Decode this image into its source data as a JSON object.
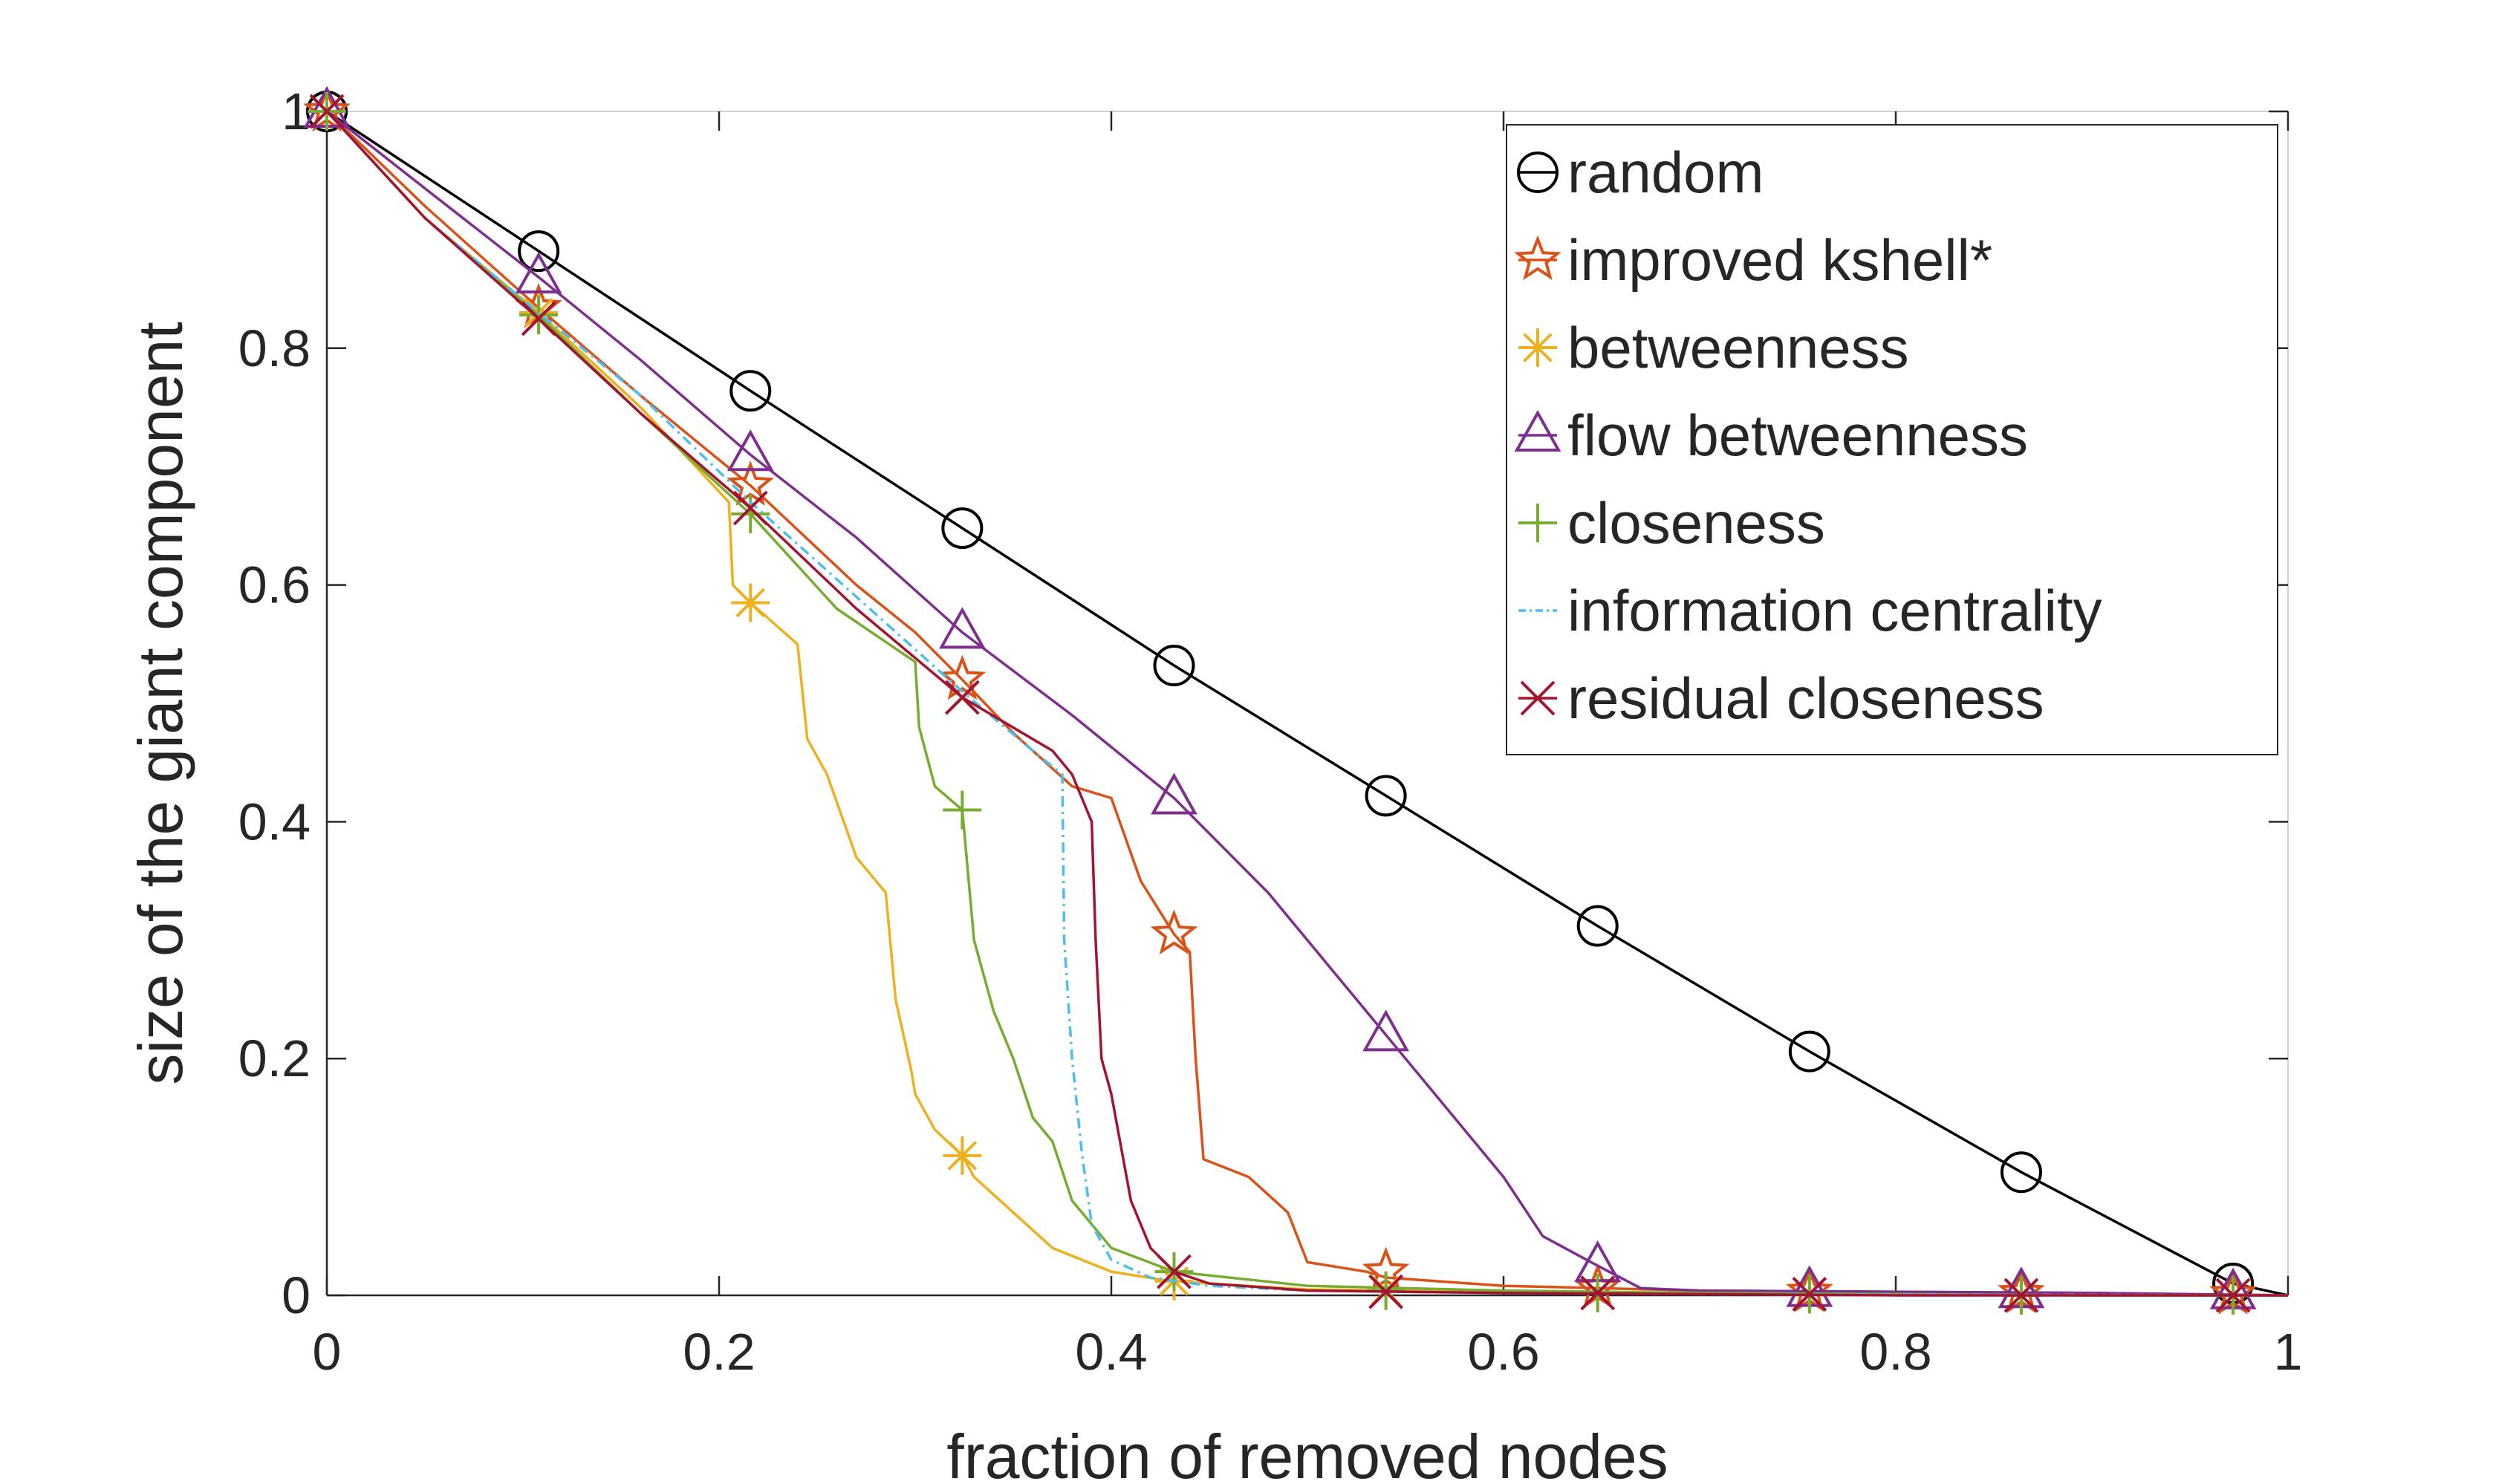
{
  "chart_data": {
    "type": "line",
    "xlabel": "fraction of removed nodes",
    "ylabel": "size of the giant component",
    "xlim": [
      0,
      1
    ],
    "ylim": [
      0,
      1
    ],
    "xticks": [
      "0",
      "0.2",
      "0.4",
      "0.6",
      "0.8",
      "1"
    ],
    "yticks": [
      "0",
      "0.2",
      "0.4",
      "0.6",
      "0.8",
      "1"
    ],
    "grid": false,
    "legend_position": "top-right",
    "series": [
      {
        "name": "random",
        "color": "#000000",
        "marker": "circle",
        "dash": "solid",
        "x": [
          0,
          0.108,
          0.216,
          0.324,
          0.432,
          0.54,
          0.648,
          0.756,
          0.864,
          0.972,
          1.0
        ],
        "y": [
          1.0,
          0.882,
          0.764,
          0.648,
          0.532,
          0.422,
          0.312,
          0.206,
          0.104,
          0.01,
          0.0
        ],
        "marker_x": [
          0,
          0.108,
          0.216,
          0.324,
          0.432,
          0.54,
          0.648,
          0.756,
          0.864,
          0.972
        ],
        "marker_y": [
          1.0,
          0.882,
          0.764,
          0.648,
          0.532,
          0.422,
          0.312,
          0.206,
          0.104,
          0.01
        ]
      },
      {
        "name": "improved kshell*",
        "color": "#D95319",
        "marker": "star",
        "dash": "solid",
        "x": [
          0,
          0.05,
          0.108,
          0.16,
          0.216,
          0.27,
          0.3,
          0.324,
          0.35,
          0.38,
          0.4,
          0.415,
          0.432,
          0.44,
          0.443,
          0.447,
          0.47,
          0.49,
          0.5,
          0.53,
          0.54,
          0.6,
          0.65,
          0.7,
          0.8,
          0.9,
          1.0
        ],
        "y": [
          1.0,
          0.92,
          0.834,
          0.76,
          0.684,
          0.6,
          0.56,
          0.52,
          0.475,
          0.43,
          0.42,
          0.35,
          0.305,
          0.29,
          0.2,
          0.115,
          0.1,
          0.07,
          0.028,
          0.02,
          0.015,
          0.008,
          0.006,
          0.004,
          0.003,
          0.002,
          0.0
        ],
        "marker_x": [
          0,
          0.108,
          0.216,
          0.324,
          0.432,
          0.54,
          0.648,
          0.756,
          0.864,
          0.972
        ],
        "marker_y": [
          1.0,
          0.834,
          0.684,
          0.52,
          0.305,
          0.02,
          0.006,
          0.003,
          0.002,
          0.001
        ]
      },
      {
        "name": "betweenness",
        "color": "#EDB120",
        "marker": "asterisk",
        "dash": "solid",
        "x": [
          0,
          0.05,
          0.108,
          0.16,
          0.205,
          0.207,
          0.216,
          0.24,
          0.245,
          0.255,
          0.27,
          0.285,
          0.29,
          0.298,
          0.3,
          0.31,
          0.324,
          0.33,
          0.35,
          0.37,
          0.4,
          0.43,
          0.5,
          0.6,
          0.7,
          0.8,
          0.9,
          1.0
        ],
        "y": [
          1.0,
          0.91,
          0.83,
          0.75,
          0.67,
          0.6,
          0.585,
          0.55,
          0.47,
          0.44,
          0.37,
          0.34,
          0.25,
          0.19,
          0.17,
          0.14,
          0.118,
          0.1,
          0.07,
          0.04,
          0.02,
          0.012,
          0.005,
          0.003,
          0.002,
          0.001,
          0.0,
          0.0
        ],
        "marker_x": [
          0,
          0.108,
          0.216,
          0.324,
          0.432,
          0.54,
          0.648,
          0.756,
          0.864,
          0.972
        ],
        "marker_y": [
          1.0,
          0.83,
          0.585,
          0.118,
          0.012,
          0.004,
          0.002,
          0.001,
          0.0,
          0.0
        ]
      },
      {
        "name": "flow betweenness",
        "color": "#7E2F8E",
        "marker": "triangle",
        "dash": "solid",
        "x": [
          0,
          0.05,
          0.108,
          0.16,
          0.216,
          0.27,
          0.324,
          0.38,
          0.432,
          0.48,
          0.51,
          0.54,
          0.57,
          0.6,
          0.62,
          0.648,
          0.67,
          0.7,
          0.8,
          0.9,
          1.0
        ],
        "y": [
          1.0,
          0.935,
          0.86,
          0.79,
          0.71,
          0.64,
          0.56,
          0.49,
          0.42,
          0.34,
          0.28,
          0.22,
          0.16,
          0.1,
          0.05,
          0.025,
          0.006,
          0.004,
          0.003,
          0.002,
          0.0
        ],
        "marker_x": [
          0,
          0.108,
          0.216,
          0.324,
          0.432,
          0.54,
          0.648,
          0.756,
          0.864,
          0.972
        ],
        "marker_y": [
          1.0,
          0.86,
          0.71,
          0.56,
          0.42,
          0.22,
          0.025,
          0.004,
          0.003,
          0.002
        ]
      },
      {
        "name": "closeness",
        "color": "#77AC30",
        "marker": "plus",
        "dash": "solid",
        "x": [
          0,
          0.05,
          0.108,
          0.16,
          0.216,
          0.26,
          0.3,
          0.302,
          0.31,
          0.324,
          0.33,
          0.34,
          0.35,
          0.36,
          0.37,
          0.38,
          0.4,
          0.432,
          0.5,
          0.6,
          0.7,
          0.8,
          0.9,
          1.0
        ],
        "y": [
          1.0,
          0.91,
          0.828,
          0.745,
          0.66,
          0.58,
          0.535,
          0.48,
          0.43,
          0.41,
          0.3,
          0.24,
          0.2,
          0.15,
          0.13,
          0.08,
          0.04,
          0.02,
          0.008,
          0.004,
          0.002,
          0.001,
          0.0,
          0.0
        ],
        "marker_x": [
          0,
          0.108,
          0.216,
          0.324,
          0.432,
          0.54,
          0.648,
          0.756,
          0.864,
          0.972
        ],
        "marker_y": [
          1.0,
          0.828,
          0.66,
          0.41,
          0.02,
          0.004,
          0.002,
          0.001,
          0.0,
          0.0
        ]
      },
      {
        "name": "information centrality",
        "color": "#4DBEEE",
        "marker": "none",
        "dash": "dashdot",
        "x": [
          0,
          0.05,
          0.108,
          0.16,
          0.216,
          0.27,
          0.324,
          0.36,
          0.375,
          0.376,
          0.38,
          0.385,
          0.39,
          0.4,
          0.42,
          0.45,
          0.5,
          0.6,
          0.7,
          1.0
        ],
        "y": [
          1.0,
          0.91,
          0.83,
          0.76,
          0.67,
          0.59,
          0.51,
          0.46,
          0.44,
          0.3,
          0.2,
          0.12,
          0.06,
          0.03,
          0.015,
          0.008,
          0.004,
          0.002,
          0.001,
          0.0
        ]
      },
      {
        "name": "residual closeness",
        "color": "#A2142F",
        "marker": "x",
        "dash": "solid",
        "x": [
          0,
          0.05,
          0.108,
          0.16,
          0.216,
          0.27,
          0.324,
          0.37,
          0.38,
          0.39,
          0.392,
          0.395,
          0.4,
          0.41,
          0.42,
          0.432,
          0.45,
          0.5,
          0.6,
          0.7,
          0.8,
          0.9,
          1.0
        ],
        "y": [
          1.0,
          0.91,
          0.825,
          0.745,
          0.665,
          0.58,
          0.505,
          0.46,
          0.44,
          0.4,
          0.3,
          0.2,
          0.17,
          0.08,
          0.04,
          0.02,
          0.01,
          0.004,
          0.002,
          0.001,
          0.0,
          0.0,
          0.0
        ],
        "marker_x": [
          0,
          0.108,
          0.216,
          0.324,
          0.432,
          0.54,
          0.648,
          0.756,
          0.864,
          0.972
        ],
        "marker_y": [
          1.0,
          0.825,
          0.665,
          0.505,
          0.02,
          0.003,
          0.002,
          0.001,
          0.0,
          0.0
        ]
      }
    ]
  }
}
